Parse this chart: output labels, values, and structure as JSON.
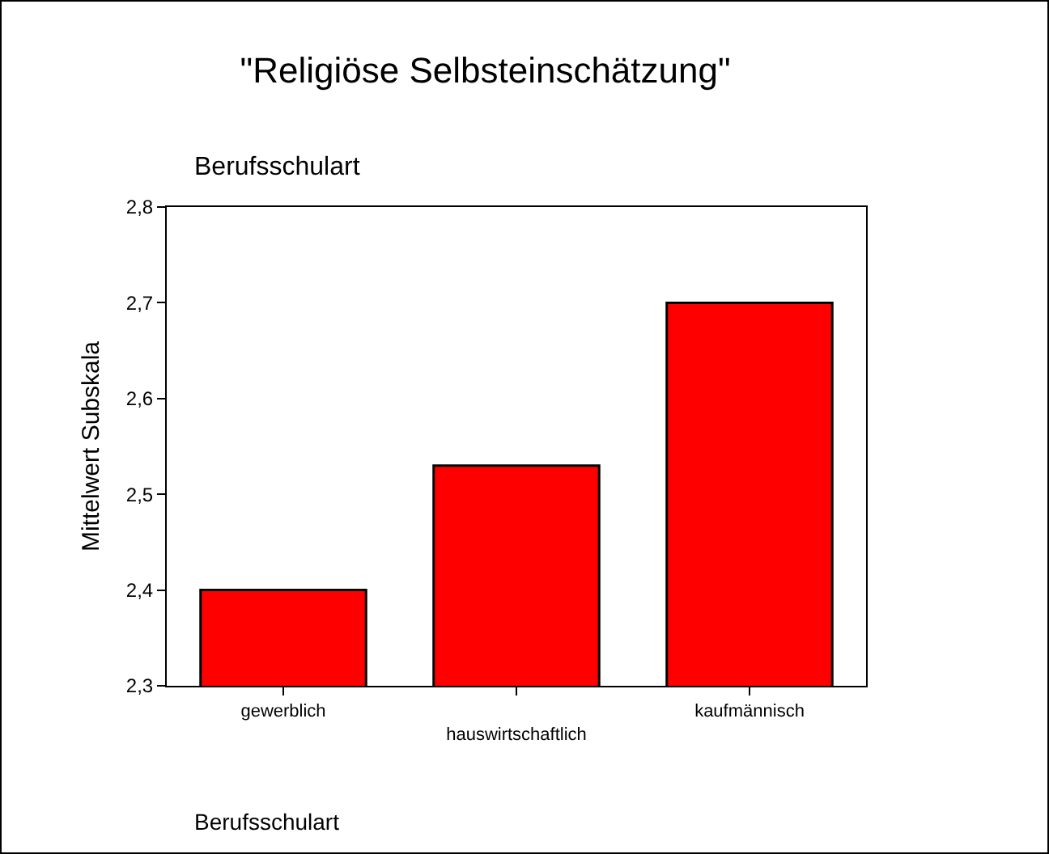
{
  "chart_data": {
    "type": "bar",
    "title": "\"Religiöse Selbsteinschätzung\"",
    "subtitle": "Berufsschulart",
    "xlabel": "Berufsschulart",
    "ylabel": "Mittelwert Subskala",
    "categories": [
      "gewerblich",
      "hauswirtschaftlich",
      "kaufmännisch"
    ],
    "values": [
      2.4,
      2.53,
      2.7
    ],
    "color": "#ff0000",
    "ylim": [
      2.3,
      2.8
    ],
    "yticks": [
      {
        "value": 2.3,
        "label": "2,3"
      },
      {
        "value": 2.4,
        "label": "2,4"
      },
      {
        "value": 2.5,
        "label": "2,5"
      },
      {
        "value": 2.6,
        "label": "2,6"
      },
      {
        "value": 2.7,
        "label": "2,7"
      },
      {
        "value": 2.8,
        "label": "2,8"
      }
    ],
    "grid": false,
    "legend": false
  }
}
